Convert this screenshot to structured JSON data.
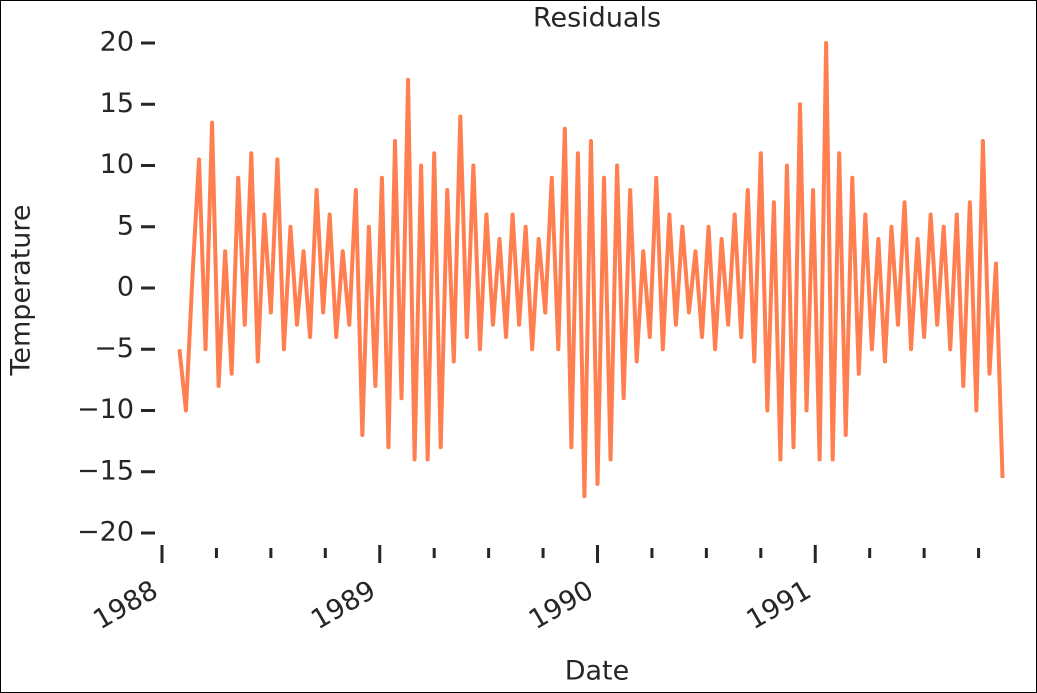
{
  "chart_data": {
    "type": "line",
    "title": "Residuals",
    "x_label": "Date",
    "y_label": "Temperature",
    "x": [
      1988.08,
      1988.11,
      1988.14,
      1988.17,
      1988.2,
      1988.23,
      1988.26,
      1988.29,
      1988.32,
      1988.35,
      1988.38,
      1988.41,
      1988.44,
      1988.47,
      1988.5,
      1988.53,
      1988.56,
      1988.59,
      1988.62,
      1988.65,
      1988.68,
      1988.71,
      1988.74,
      1988.77,
      1988.8,
      1988.83,
      1988.86,
      1988.89,
      1988.92,
      1988.95,
      1988.98,
      1989.01,
      1989.04,
      1989.07,
      1989.1,
      1989.13,
      1989.16,
      1989.19,
      1989.22,
      1989.25,
      1989.28,
      1989.31,
      1989.34,
      1989.37,
      1989.4,
      1989.43,
      1989.46,
      1989.49,
      1989.52,
      1989.55,
      1989.58,
      1989.61,
      1989.64,
      1989.67,
      1989.7,
      1989.73,
      1989.76,
      1989.79,
      1989.82,
      1989.85,
      1989.88,
      1989.91,
      1989.94,
      1989.97,
      1990,
      1990.03,
      1990.06,
      1990.09,
      1990.12,
      1990.15,
      1990.18,
      1990.21,
      1990.24,
      1990.27,
      1990.3,
      1990.33,
      1990.36,
      1990.39,
      1990.42,
      1990.45,
      1990.48,
      1990.51,
      1990.54,
      1990.57,
      1990.6,
      1990.63,
      1990.66,
      1990.69,
      1990.72,
      1990.75,
      1990.78,
      1990.81,
      1990.84,
      1990.87,
      1990.9,
      1990.93,
      1990.96,
      1990.99,
      1991.02,
      1991.05,
      1991.08,
      1991.11,
      1991.14,
      1991.17,
      1991.2,
      1991.23,
      1991.26,
      1991.29,
      1991.32,
      1991.35,
      1991.38,
      1991.41,
      1991.44,
      1991.47,
      1991.5,
      1991.53,
      1991.56,
      1991.59,
      1991.62,
      1991.65,
      1991.68,
      1991.71,
      1991.74,
      1991.77,
      1991.8,
      1991.83,
      1991.86
    ],
    "series": [
      {
        "color": "#ff7f50",
        "values": [
          -5,
          -10,
          1,
          10.5,
          -5,
          13.5,
          -8,
          3,
          -7,
          9,
          -3,
          11,
          -6,
          6,
          -2,
          10.5,
          -5,
          5,
          -3,
          3,
          -4,
          8,
          -2,
          6,
          -4,
          3,
          -3,
          8,
          -12,
          5,
          -8,
          9,
          -13,
          12,
          -9,
          17,
          -14,
          10,
          -14,
          11,
          -13,
          8,
          -6,
          14,
          -4,
          10,
          -5,
          6,
          -3,
          4,
          -4,
          6,
          -3,
          5,
          -5,
          4,
          -2,
          9,
          -5,
          13,
          -13,
          11,
          -17,
          12,
          -16,
          9,
          -14,
          10,
          -9,
          8,
          -6,
          3,
          -4,
          9,
          -5,
          6,
          -3,
          5,
          -2,
          3,
          -4,
          5,
          -5,
          4,
          -3,
          6,
          -4,
          8,
          -6,
          11,
          -10,
          7,
          -14,
          10,
          -13,
          15,
          -10,
          8,
          -14,
          20,
          -14,
          11,
          -12,
          9,
          -7,
          6,
          -5,
          4,
          -6,
          5,
          -3,
          7,
          -5,
          4,
          -4,
          6,
          -3,
          5,
          -5,
          6,
          -8,
          7,
          -10,
          12,
          -7,
          2,
          -15.5
        ]
      }
    ],
    "xlim": [
      1988,
      1992
    ],
    "xticks": [
      1988,
      1989,
      1990,
      1991
    ],
    "ylim": [
      -20,
      20
    ],
    "yticks": [
      {
        "value": -20,
        "label": "−20"
      },
      {
        "value": -15,
        "label": "−15"
      },
      {
        "value": -10,
        "label": "−10"
      },
      {
        "value": -5,
        "label": "−5"
      },
      0,
      5,
      10,
      15,
      20
    ]
  }
}
